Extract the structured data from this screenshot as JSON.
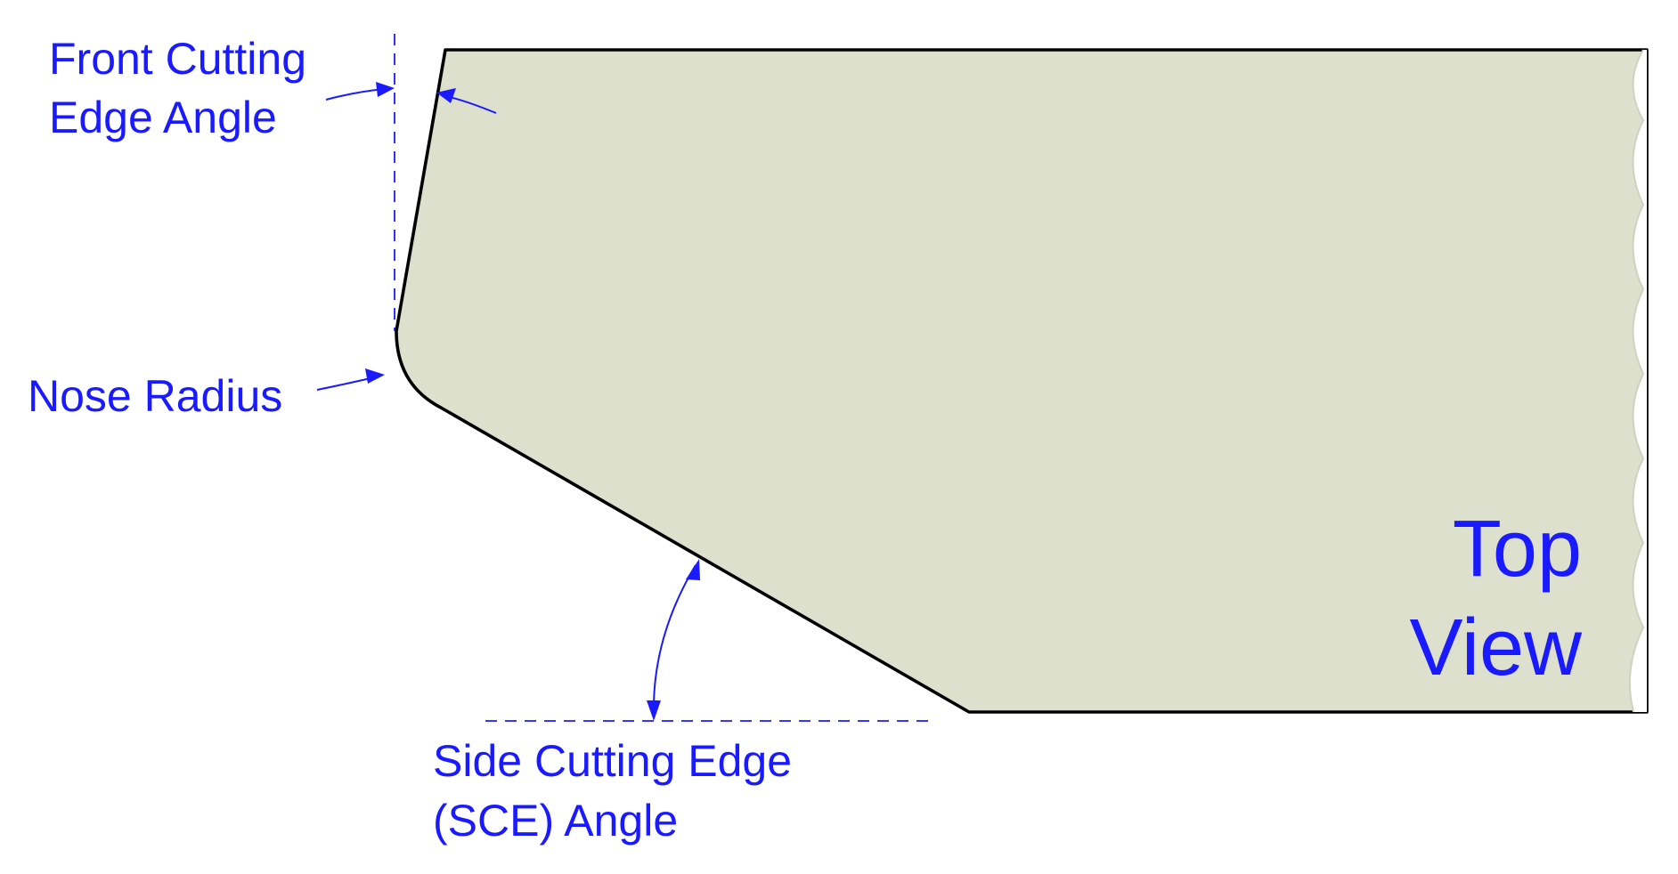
{
  "labels": {
    "front_cutting_line1": "Front Cutting",
    "front_cutting_line2": "Edge Angle",
    "nose_radius": "Nose Radius",
    "side_cutting_line1": "Side Cutting Edge",
    "side_cutting_line2": "(SCE) Angle",
    "top": "Top",
    "view": "View"
  },
  "colors": {
    "tool_fill": "#dde0cd",
    "outline": "#000000",
    "annotation": "#1a1aff"
  }
}
